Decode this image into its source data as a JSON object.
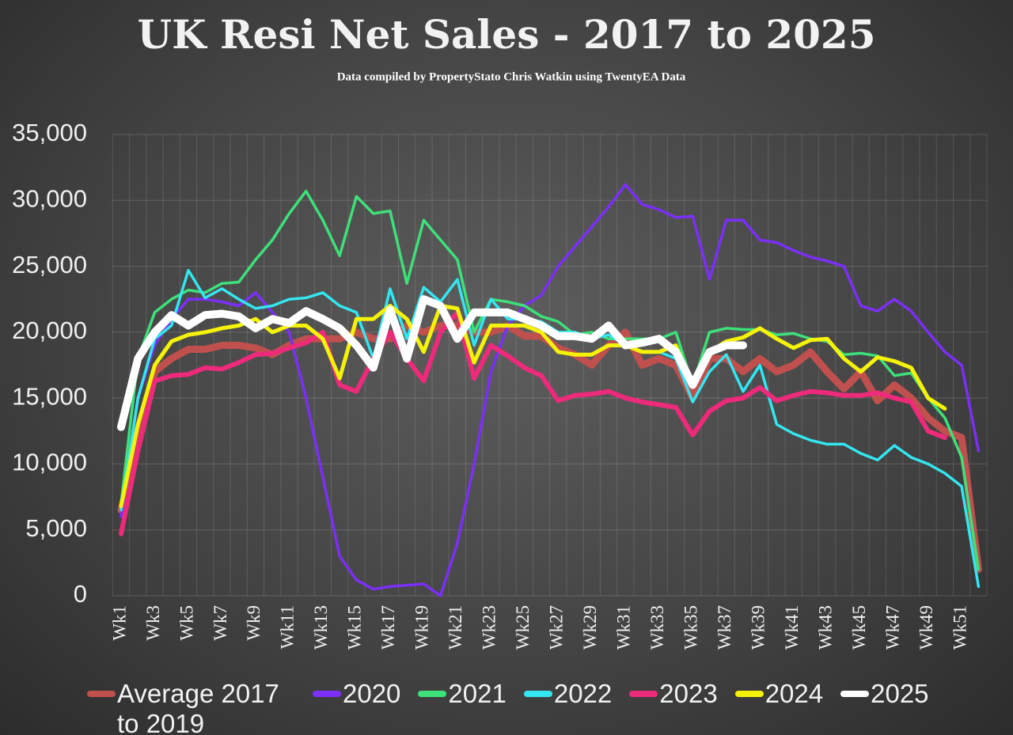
{
  "chart_data": {
    "type": "line",
    "title": "UK  Resi Net Sales - 2017 to 2025",
    "subtitle": "Data compiled by PropertyStato Chris Watkin using TwentyEA Data",
    "categories": [
      "Wk1",
      null,
      "Wk3",
      null,
      "Wk5",
      null,
      "Wk7",
      null,
      "Wk9",
      null,
      "Wk11",
      null,
      "Wk13",
      null,
      "Wk15",
      null,
      "Wk17",
      null,
      "Wk19",
      null,
      "Wk21",
      null,
      "Wk23",
      null,
      "Wk25",
      null,
      "Wk27",
      null,
      "Wk29",
      null,
      "Wk31",
      null,
      "Wk33",
      null,
      "Wk35",
      null,
      "Wk37",
      null,
      "Wk39",
      null,
      "Wk41",
      null,
      "Wk43",
      null,
      "Wk45",
      null,
      "Wk47",
      null,
      "Wk49",
      null,
      "Wk51",
      null
    ],
    "ylim": [
      0,
      35000
    ],
    "yticks": [
      0,
      {
        "value": 5000,
        "label": "5,000"
      },
      {
        "value": 10000,
        "label": "10,000"
      },
      {
        "value": 15000,
        "label": "15,000"
      },
      {
        "value": 20000,
        "label": "20,000"
      },
      {
        "value": 25000,
        "label": "25,000"
      },
      {
        "value": 30000,
        "label": "30,000"
      },
      {
        "value": 35000,
        "label": "35,000"
      }
    ],
    "grid": true,
    "legend": "bottom",
    "series": [
      {
        "name": "Average 2017 to 2019",
        "color": "#c0504d",
        "values": [
          6500,
          12000,
          17000,
          18000,
          18700,
          18700,
          19000,
          19000,
          18800,
          18300,
          19000,
          19500,
          19500,
          19500,
          20000,
          19500,
          19500,
          20500,
          20000,
          20500,
          20500,
          20000,
          20000,
          20500,
          19700,
          19700,
          18800,
          18300,
          17500,
          19000,
          20000,
          17500,
          18000,
          17500,
          15000,
          18000,
          18000,
          17000,
          18000,
          17000,
          17500,
          18500,
          17000,
          15700,
          17000,
          14800,
          16000,
          15000,
          13500,
          12500,
          12000,
          2000
        ]
      },
      {
        "name": "2020",
        "color": "#7b2ff7",
        "values": [
          6000,
          15000,
          19000,
          21000,
          22500,
          22500,
          22300,
          22000,
          23000,
          21500,
          20000,
          15000,
          9000,
          3000,
          1200,
          500,
          700,
          800,
          900,
          0,
          4000,
          10000,
          17000,
          20500,
          22000,
          22800,
          25000,
          26500,
          28000,
          29500,
          31200,
          29700,
          29300,
          28700,
          28800,
          24000,
          28500,
          28500,
          27000,
          26800,
          26200,
          25700,
          25400,
          25000,
          22000,
          21600,
          22500,
          21600,
          20000,
          18500,
          17500,
          11000
        ]
      },
      {
        "name": "2021",
        "color": "#3ee07a",
        "values": [
          7000,
          18000,
          21500,
          22500,
          23200,
          23000,
          23700,
          23800,
          25500,
          27000,
          29000,
          30700,
          28500,
          25800,
          30300,
          29000,
          29200,
          23700,
          28500,
          27000,
          25500,
          20000,
          22500,
          22300,
          22000,
          21200,
          20800,
          19800,
          20000,
          19500,
          19500,
          19500,
          19500,
          20000,
          16000,
          20000,
          20300,
          20200,
          20200,
          19800,
          19900,
          19500,
          19300,
          18300,
          18400,
          18200,
          16700,
          16900,
          15000,
          13500,
          10500,
          2000
        ]
      },
      {
        "name": "2022",
        "color": "#33e6f0",
        "values": [
          6500,
          15000,
          19500,
          20500,
          24700,
          22600,
          23300,
          22500,
          21800,
          22000,
          22500,
          22600,
          23000,
          22000,
          21500,
          18000,
          23300,
          19500,
          23400,
          22300,
          24000,
          19000,
          22500,
          21000,
          21000,
          20800,
          20000,
          20000,
          19500,
          19800,
          19000,
          18500,
          18500,
          18000,
          14700,
          17000,
          18300,
          15500,
          17500,
          13000,
          12300,
          11800,
          11500,
          11500,
          10800,
          10300,
          11400,
          10500,
          10000,
          9300,
          8300,
          700
        ]
      },
      {
        "name": "2023",
        "color": "#ee2a7b",
        "values": [
          4700,
          11000,
          16300,
          16700,
          16800,
          17300,
          17200,
          17700,
          18300,
          18400,
          18800,
          19200,
          20000,
          16000,
          15500,
          18000,
          20000,
          18000,
          16300,
          20000,
          21500,
          16500,
          19000,
          18200,
          17300,
          16700,
          14800,
          15200,
          15300,
          15500,
          15000,
          14700,
          14500,
          14300,
          12200,
          14000,
          14800,
          15000,
          15800,
          14800,
          15200,
          15500,
          15400,
          15200,
          15200,
          15400,
          15000,
          14700,
          12500,
          12000,
          null,
          null
        ]
      },
      {
        "name": "2024",
        "color": "#f5f20a",
        "values": [
          6800,
          13000,
          17500,
          19300,
          19800,
          20000,
          20300,
          20500,
          21000,
          20000,
          20500,
          20500,
          19500,
          16500,
          21000,
          21000,
          22000,
          21000,
          18500,
          22000,
          21800,
          17700,
          20500,
          20500,
          20500,
          20000,
          18500,
          18300,
          18300,
          19000,
          19000,
          18500,
          18500,
          19000,
          16000,
          18500,
          19300,
          19600,
          20300,
          19500,
          18800,
          19400,
          19500,
          18000,
          17000,
          18100,
          17800,
          17300,
          15000,
          14200,
          null,
          null
        ]
      },
      {
        "name": "2025",
        "color": "#ffffff",
        "values": [
          12800,
          18000,
          20000,
          21300,
          20500,
          21300,
          21400,
          21200,
          20300,
          21000,
          20700,
          21600,
          21000,
          20300,
          19000,
          17300,
          21700,
          18000,
          22500,
          22000,
          19500,
          21500,
          21500,
          21500,
          21000,
          20500,
          19700,
          19700,
          19500,
          20500,
          19000,
          19200,
          19500,
          18500,
          16000,
          18500,
          19000,
          19000,
          null,
          null,
          null,
          null,
          null,
          null,
          null,
          null,
          null,
          null,
          null,
          null,
          null,
          null
        ]
      }
    ]
  }
}
